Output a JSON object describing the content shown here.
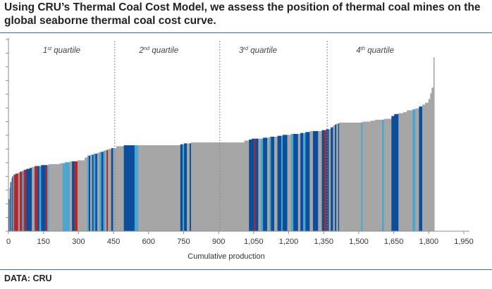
{
  "header": {
    "title": "Using CRU’s Thermal Coal Cost Model, we assess the position of thermal coal mines on the global seaborne thermal coal cost curve."
  },
  "footer": {
    "source": "DATA: CRU"
  },
  "colors": {
    "gray": "#a6a6a6",
    "dark_blue": "#0b4e9c",
    "light_blue": "#4aa6cf",
    "red": "#b3282d",
    "divider": "#8a8a8a",
    "rule": "#3b6ea8"
  },
  "chart_data": {
    "type": "bar",
    "subtype": "cost curve (variable-width bars)",
    "xlabel": "Cumulative production",
    "ylabel": "",
    "xlim": [
      0,
      1950
    ],
    "ylim": [
      0,
      100
    ],
    "x_ticks": [
      0,
      150,
      300,
      450,
      600,
      750,
      900,
      1050,
      1200,
      1350,
      1500,
      1650,
      1800,
      1950
    ],
    "x_tick_labels": [
      "0",
      "150",
      "300",
      "450",
      "600",
      "750",
      "900",
      "1,050",
      "1,200",
      "1,350",
      "1,500",
      "1,650",
      "1,800",
      "1,950"
    ],
    "y_tick_count": 14,
    "y_tick_labels_shown": false,
    "grid": false,
    "quartiles": [
      {
        "ord": "1",
        "sup": "st",
        "text": "quartile"
      },
      {
        "ord": "2",
        "sup": "nd",
        "text": "quartile"
      },
      {
        "ord": "3",
        "sup": "rd",
        "text": "quartile"
      },
      {
        "ord": "4",
        "sup": "th",
        "text": "quartile"
      }
    ],
    "quartile_boundaries": [
      455,
      905,
      1365
    ],
    "segments": [
      {
        "x0": 0,
        "x1": 4,
        "y": 17,
        "c": "d"
      },
      {
        "x0": 4,
        "x1": 8,
        "y": 23,
        "c": "g"
      },
      {
        "x0": 8,
        "x1": 12,
        "y": 26,
        "c": "d"
      },
      {
        "x0": 12,
        "x1": 16,
        "y": 28,
        "c": "g"
      },
      {
        "x0": 16,
        "x1": 20,
        "y": 29,
        "c": "d"
      },
      {
        "x0": 20,
        "x1": 24,
        "y": 30,
        "c": "g"
      },
      {
        "x0": 24,
        "x1": 30,
        "y": 30,
        "c": "r"
      },
      {
        "x0": 30,
        "x1": 42,
        "y": 30.5,
        "c": "r"
      },
      {
        "x0": 42,
        "x1": 48,
        "y": 31,
        "c": "g"
      },
      {
        "x0": 48,
        "x1": 58,
        "y": 31.5,
        "c": "r"
      },
      {
        "x0": 58,
        "x1": 66,
        "y": 32,
        "c": "l"
      },
      {
        "x0": 66,
        "x1": 76,
        "y": 32.5,
        "c": "r"
      },
      {
        "x0": 76,
        "x1": 90,
        "y": 33,
        "c": "d"
      },
      {
        "x0": 90,
        "x1": 100,
        "y": 33.5,
        "c": "d"
      },
      {
        "x0": 100,
        "x1": 112,
        "y": 34,
        "c": "g"
      },
      {
        "x0": 112,
        "x1": 124,
        "y": 34.5,
        "c": "r"
      },
      {
        "x0": 124,
        "x1": 132,
        "y": 34.5,
        "c": "d"
      },
      {
        "x0": 132,
        "x1": 140,
        "y": 34.5,
        "c": "l"
      },
      {
        "x0": 140,
        "x1": 158,
        "y": 35,
        "c": "d"
      },
      {
        "x0": 158,
        "x1": 166,
        "y": 35,
        "c": "r"
      },
      {
        "x0": 166,
        "x1": 172,
        "y": 35,
        "c": "l"
      },
      {
        "x0": 172,
        "x1": 198,
        "y": 35.5,
        "c": "g"
      },
      {
        "x0": 198,
        "x1": 220,
        "y": 35.5,
        "c": "g"
      },
      {
        "x0": 220,
        "x1": 232,
        "y": 36,
        "c": "g"
      },
      {
        "x0": 232,
        "x1": 242,
        "y": 36,
        "c": "l"
      },
      {
        "x0": 242,
        "x1": 262,
        "y": 36.5,
        "c": "l"
      },
      {
        "x0": 262,
        "x1": 272,
        "y": 37,
        "c": "g"
      },
      {
        "x0": 272,
        "x1": 282,
        "y": 37,
        "c": "d"
      },
      {
        "x0": 282,
        "x1": 296,
        "y": 37,
        "c": "r"
      },
      {
        "x0": 296,
        "x1": 326,
        "y": 37.5,
        "c": "g"
      },
      {
        "x0": 326,
        "x1": 338,
        "y": 39,
        "c": "g"
      },
      {
        "x0": 338,
        "x1": 344,
        "y": 40,
        "c": "l"
      },
      {
        "x0": 344,
        "x1": 350,
        "y": 40,
        "c": "d"
      },
      {
        "x0": 350,
        "x1": 358,
        "y": 40.5,
        "c": "g"
      },
      {
        "x0": 358,
        "x1": 364,
        "y": 40.5,
        "c": "d"
      },
      {
        "x0": 364,
        "x1": 372,
        "y": 41,
        "c": "l"
      },
      {
        "x0": 372,
        "x1": 380,
        "y": 41,
        "c": "d"
      },
      {
        "x0": 380,
        "x1": 390,
        "y": 41.5,
        "c": "g"
      },
      {
        "x0": 390,
        "x1": 398,
        "y": 42,
        "c": "l"
      },
      {
        "x0": 398,
        "x1": 406,
        "y": 42,
        "c": "d"
      },
      {
        "x0": 406,
        "x1": 414,
        "y": 42.5,
        "c": "l"
      },
      {
        "x0": 414,
        "x1": 420,
        "y": 43,
        "c": "g"
      },
      {
        "x0": 420,
        "x1": 426,
        "y": 43,
        "c": "r"
      },
      {
        "x0": 426,
        "x1": 440,
        "y": 43.5,
        "c": "g"
      },
      {
        "x0": 440,
        "x1": 448,
        "y": 44,
        "c": "d"
      },
      {
        "x0": 448,
        "x1": 462,
        "y": 44,
        "c": "g"
      },
      {
        "x0": 462,
        "x1": 470,
        "y": 45,
        "c": "g"
      },
      {
        "x0": 470,
        "x1": 494,
        "y": 45,
        "c": "g"
      },
      {
        "x0": 494,
        "x1": 540,
        "y": 45.5,
        "c": "d"
      },
      {
        "x0": 540,
        "x1": 556,
        "y": 45.5,
        "c": "l"
      },
      {
        "x0": 556,
        "x1": 720,
        "y": 45.5,
        "c": "g"
      },
      {
        "x0": 720,
        "x1": 736,
        "y": 45.5,
        "c": "g"
      },
      {
        "x0": 736,
        "x1": 746,
        "y": 46,
        "c": "d"
      },
      {
        "x0": 746,
        "x1": 752,
        "y": 46,
        "c": "l"
      },
      {
        "x0": 752,
        "x1": 764,
        "y": 46.5,
        "c": "d"
      },
      {
        "x0": 764,
        "x1": 776,
        "y": 46.5,
        "c": "g"
      },
      {
        "x0": 776,
        "x1": 782,
        "y": 46.5,
        "c": "d"
      },
      {
        "x0": 782,
        "x1": 1010,
        "y": 47,
        "c": "g"
      },
      {
        "x0": 1010,
        "x1": 1030,
        "y": 48,
        "c": "g"
      },
      {
        "x0": 1030,
        "x1": 1042,
        "y": 48.5,
        "c": "d"
      },
      {
        "x0": 1042,
        "x1": 1052,
        "y": 49,
        "c": "d"
      },
      {
        "x0": 1052,
        "x1": 1058,
        "y": 49,
        "c": "r"
      },
      {
        "x0": 1058,
        "x1": 1070,
        "y": 49,
        "c": "d"
      },
      {
        "x0": 1070,
        "x1": 1080,
        "y": 49,
        "c": "g"
      },
      {
        "x0": 1080,
        "x1": 1090,
        "y": 49,
        "c": "l"
      },
      {
        "x0": 1090,
        "x1": 1108,
        "y": 49.5,
        "c": "d"
      },
      {
        "x0": 1108,
        "x1": 1118,
        "y": 49.5,
        "c": "g"
      },
      {
        "x0": 1118,
        "x1": 1124,
        "y": 50,
        "c": "l"
      },
      {
        "x0": 1124,
        "x1": 1138,
        "y": 50,
        "c": "d"
      },
      {
        "x0": 1138,
        "x1": 1152,
        "y": 50,
        "c": "g"
      },
      {
        "x0": 1152,
        "x1": 1168,
        "y": 50.5,
        "c": "d"
      },
      {
        "x0": 1168,
        "x1": 1174,
        "y": 50.5,
        "c": "l"
      },
      {
        "x0": 1174,
        "x1": 1194,
        "y": 51,
        "c": "d"
      },
      {
        "x0": 1194,
        "x1": 1210,
        "y": 51,
        "c": "g"
      },
      {
        "x0": 1210,
        "x1": 1220,
        "y": 51.5,
        "c": "l"
      },
      {
        "x0": 1220,
        "x1": 1240,
        "y": 51.5,
        "c": "d"
      },
      {
        "x0": 1240,
        "x1": 1250,
        "y": 51.5,
        "c": "g"
      },
      {
        "x0": 1250,
        "x1": 1262,
        "y": 52,
        "c": "d"
      },
      {
        "x0": 1262,
        "x1": 1272,
        "y": 52,
        "c": "l"
      },
      {
        "x0": 1272,
        "x1": 1290,
        "y": 52.5,
        "c": "d"
      },
      {
        "x0": 1290,
        "x1": 1304,
        "y": 53,
        "c": "g"
      },
      {
        "x0": 1304,
        "x1": 1312,
        "y": 53,
        "c": "d"
      },
      {
        "x0": 1312,
        "x1": 1326,
        "y": 53,
        "c": "d"
      },
      {
        "x0": 1326,
        "x1": 1342,
        "y": 53,
        "c": "g"
      },
      {
        "x0": 1342,
        "x1": 1352,
        "y": 53.5,
        "c": "d"
      },
      {
        "x0": 1352,
        "x1": 1360,
        "y": 53.5,
        "c": "r"
      },
      {
        "x0": 1360,
        "x1": 1372,
        "y": 54,
        "c": "d"
      },
      {
        "x0": 1372,
        "x1": 1380,
        "y": 54,
        "c": "g"
      },
      {
        "x0": 1380,
        "x1": 1390,
        "y": 55,
        "c": "d"
      },
      {
        "x0": 1390,
        "x1": 1398,
        "y": 56,
        "c": "g"
      },
      {
        "x0": 1398,
        "x1": 1404,
        "y": 56.5,
        "c": "d"
      },
      {
        "x0": 1404,
        "x1": 1412,
        "y": 57,
        "c": "g"
      },
      {
        "x0": 1412,
        "x1": 1416,
        "y": 57,
        "c": "d"
      },
      {
        "x0": 1416,
        "x1": 1510,
        "y": 57.5,
        "c": "g"
      },
      {
        "x0": 1510,
        "x1": 1516,
        "y": 57.5,
        "c": "l"
      },
      {
        "x0": 1516,
        "x1": 1550,
        "y": 58,
        "c": "g"
      },
      {
        "x0": 1550,
        "x1": 1570,
        "y": 58.5,
        "c": "g"
      },
      {
        "x0": 1570,
        "x1": 1600,
        "y": 59,
        "c": "g"
      },
      {
        "x0": 1600,
        "x1": 1608,
        "y": 59,
        "c": "l"
      },
      {
        "x0": 1608,
        "x1": 1640,
        "y": 59.5,
        "c": "g"
      },
      {
        "x0": 1640,
        "x1": 1652,
        "y": 61,
        "c": "d"
      },
      {
        "x0": 1652,
        "x1": 1670,
        "y": 62,
        "c": "d"
      },
      {
        "x0": 1670,
        "x1": 1690,
        "y": 62.5,
        "c": "g"
      },
      {
        "x0": 1690,
        "x1": 1706,
        "y": 63,
        "c": "g"
      },
      {
        "x0": 1706,
        "x1": 1730,
        "y": 64,
        "c": "g"
      },
      {
        "x0": 1730,
        "x1": 1742,
        "y": 64.5,
        "c": "l"
      },
      {
        "x0": 1742,
        "x1": 1758,
        "y": 65,
        "c": "g"
      },
      {
        "x0": 1758,
        "x1": 1772,
        "y": 66,
        "c": "d"
      },
      {
        "x0": 1772,
        "x1": 1784,
        "y": 67,
        "c": "g"
      },
      {
        "x0": 1784,
        "x1": 1798,
        "y": 68,
        "c": "g"
      },
      {
        "x0": 1798,
        "x1": 1806,
        "y": 70,
        "c": "g"
      },
      {
        "x0": 1806,
        "x1": 1812,
        "y": 73,
        "c": "g"
      },
      {
        "x0": 1812,
        "x1": 1820,
        "y": 76,
        "c": "g"
      },
      {
        "x0": 1820,
        "x1": 1824,
        "y": 92,
        "c": "g"
      }
    ]
  }
}
